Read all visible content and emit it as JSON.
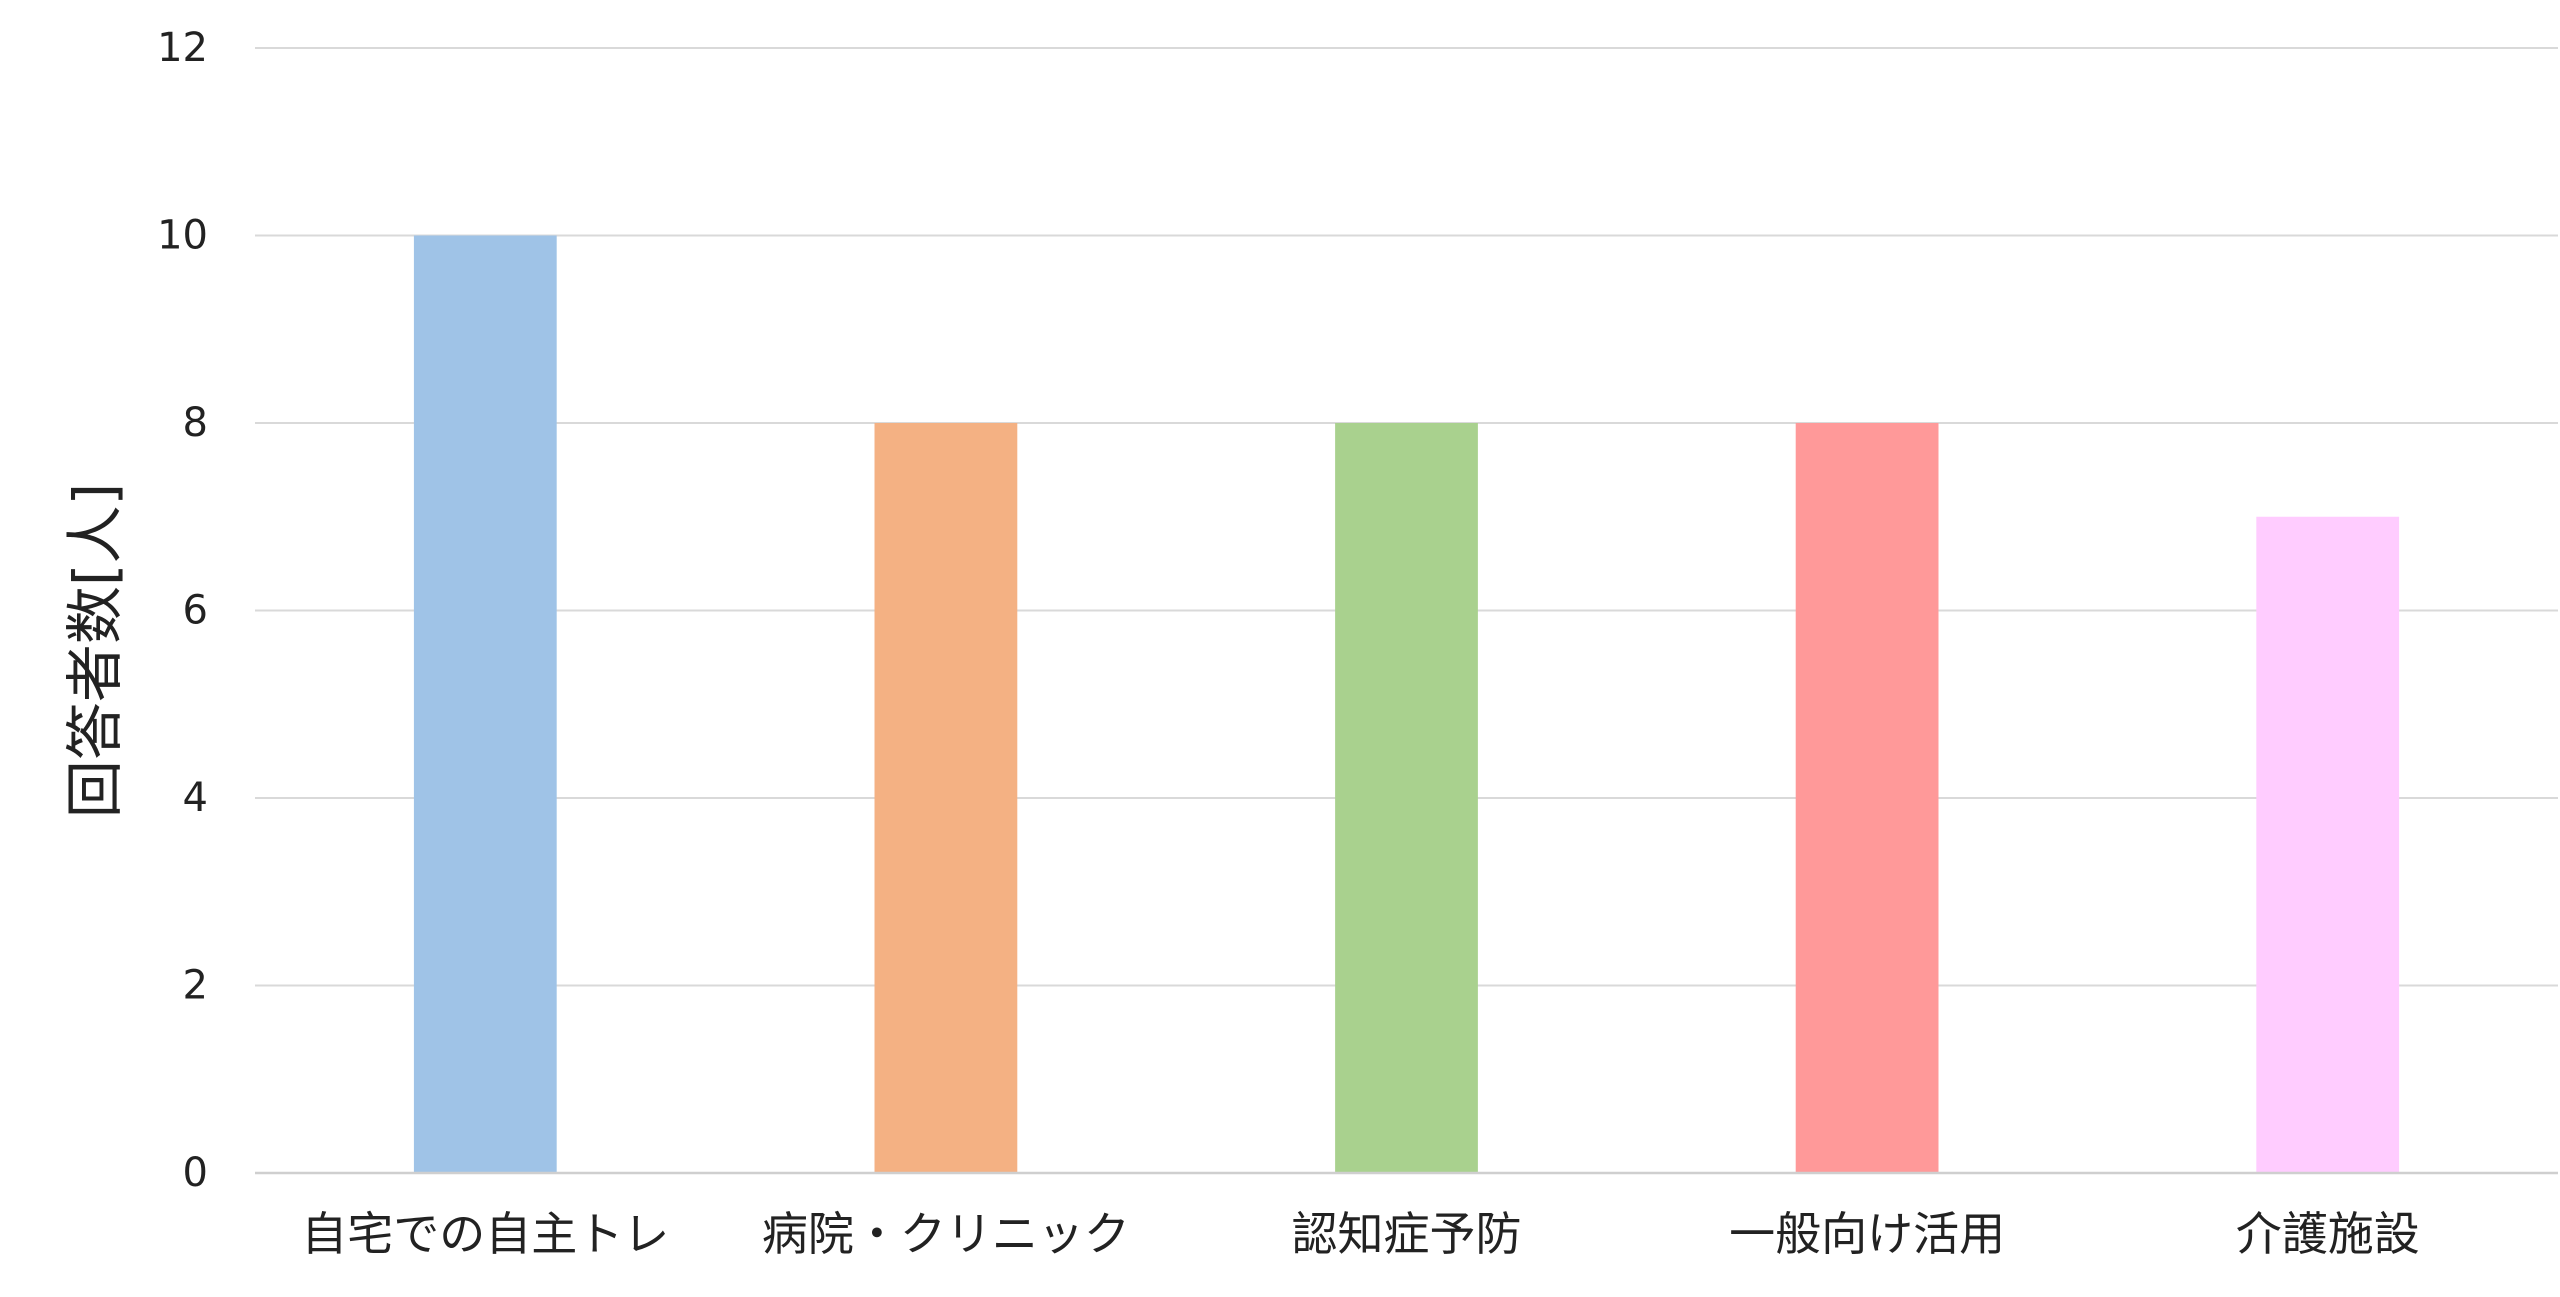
{
  "chart_data": {
    "type": "bar",
    "title": "",
    "xlabel": "",
    "ylabel": "回答者数[人]",
    "categories": [
      "自宅での自主トレ",
      "病院・クリニック",
      "認知症予防",
      "一般向け活用",
      "介護施設"
    ],
    "values": [
      10,
      8,
      8,
      8,
      7
    ],
    "colors": [
      "#9fc3e7",
      "#f4b183",
      "#a9d18e",
      "#ff9999",
      "#ffccff"
    ],
    "ylim": [
      0,
      12
    ],
    "yticks": [
      "0",
      "2",
      "4",
      "6",
      "8",
      "10",
      "12"
    ],
    "grid": true,
    "legend": "none"
  }
}
